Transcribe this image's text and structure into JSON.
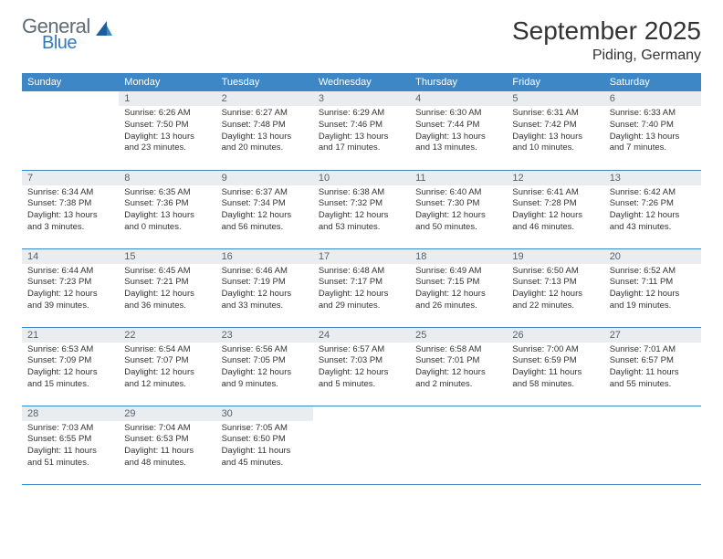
{
  "logo": {
    "general": "General",
    "blue": "Blue"
  },
  "title": "September 2025",
  "location": "Piding, Germany",
  "style": {
    "header_bg": "#3d87c7",
    "header_fg": "#ffffff",
    "daynum_bg": "#e9edf0",
    "daynum_fg": "#556270",
    "row_border": "#3d87c7",
    "body_font_size": 9.5,
    "header_font_size": 11,
    "title_font_size": 28,
    "location_font_size": 16
  },
  "days_of_week": [
    "Sunday",
    "Monday",
    "Tuesday",
    "Wednesday",
    "Thursday",
    "Friday",
    "Saturday"
  ],
  "weeks": [
    [
      null,
      {
        "n": "1",
        "sr": "Sunrise: 6:26 AM",
        "ss": "Sunset: 7:50 PM",
        "dl1": "Daylight: 13 hours",
        "dl2": "and 23 minutes."
      },
      {
        "n": "2",
        "sr": "Sunrise: 6:27 AM",
        "ss": "Sunset: 7:48 PM",
        "dl1": "Daylight: 13 hours",
        "dl2": "and 20 minutes."
      },
      {
        "n": "3",
        "sr": "Sunrise: 6:29 AM",
        "ss": "Sunset: 7:46 PM",
        "dl1": "Daylight: 13 hours",
        "dl2": "and 17 minutes."
      },
      {
        "n": "4",
        "sr": "Sunrise: 6:30 AM",
        "ss": "Sunset: 7:44 PM",
        "dl1": "Daylight: 13 hours",
        "dl2": "and 13 minutes."
      },
      {
        "n": "5",
        "sr": "Sunrise: 6:31 AM",
        "ss": "Sunset: 7:42 PM",
        "dl1": "Daylight: 13 hours",
        "dl2": "and 10 minutes."
      },
      {
        "n": "6",
        "sr": "Sunrise: 6:33 AM",
        "ss": "Sunset: 7:40 PM",
        "dl1": "Daylight: 13 hours",
        "dl2": "and 7 minutes."
      }
    ],
    [
      {
        "n": "7",
        "sr": "Sunrise: 6:34 AM",
        "ss": "Sunset: 7:38 PM",
        "dl1": "Daylight: 13 hours",
        "dl2": "and 3 minutes."
      },
      {
        "n": "8",
        "sr": "Sunrise: 6:35 AM",
        "ss": "Sunset: 7:36 PM",
        "dl1": "Daylight: 13 hours",
        "dl2": "and 0 minutes."
      },
      {
        "n": "9",
        "sr": "Sunrise: 6:37 AM",
        "ss": "Sunset: 7:34 PM",
        "dl1": "Daylight: 12 hours",
        "dl2": "and 56 minutes."
      },
      {
        "n": "10",
        "sr": "Sunrise: 6:38 AM",
        "ss": "Sunset: 7:32 PM",
        "dl1": "Daylight: 12 hours",
        "dl2": "and 53 minutes."
      },
      {
        "n": "11",
        "sr": "Sunrise: 6:40 AM",
        "ss": "Sunset: 7:30 PM",
        "dl1": "Daylight: 12 hours",
        "dl2": "and 50 minutes."
      },
      {
        "n": "12",
        "sr": "Sunrise: 6:41 AM",
        "ss": "Sunset: 7:28 PM",
        "dl1": "Daylight: 12 hours",
        "dl2": "and 46 minutes."
      },
      {
        "n": "13",
        "sr": "Sunrise: 6:42 AM",
        "ss": "Sunset: 7:26 PM",
        "dl1": "Daylight: 12 hours",
        "dl2": "and 43 minutes."
      }
    ],
    [
      {
        "n": "14",
        "sr": "Sunrise: 6:44 AM",
        "ss": "Sunset: 7:23 PM",
        "dl1": "Daylight: 12 hours",
        "dl2": "and 39 minutes."
      },
      {
        "n": "15",
        "sr": "Sunrise: 6:45 AM",
        "ss": "Sunset: 7:21 PM",
        "dl1": "Daylight: 12 hours",
        "dl2": "and 36 minutes."
      },
      {
        "n": "16",
        "sr": "Sunrise: 6:46 AM",
        "ss": "Sunset: 7:19 PM",
        "dl1": "Daylight: 12 hours",
        "dl2": "and 33 minutes."
      },
      {
        "n": "17",
        "sr": "Sunrise: 6:48 AM",
        "ss": "Sunset: 7:17 PM",
        "dl1": "Daylight: 12 hours",
        "dl2": "and 29 minutes."
      },
      {
        "n": "18",
        "sr": "Sunrise: 6:49 AM",
        "ss": "Sunset: 7:15 PM",
        "dl1": "Daylight: 12 hours",
        "dl2": "and 26 minutes."
      },
      {
        "n": "19",
        "sr": "Sunrise: 6:50 AM",
        "ss": "Sunset: 7:13 PM",
        "dl1": "Daylight: 12 hours",
        "dl2": "and 22 minutes."
      },
      {
        "n": "20",
        "sr": "Sunrise: 6:52 AM",
        "ss": "Sunset: 7:11 PM",
        "dl1": "Daylight: 12 hours",
        "dl2": "and 19 minutes."
      }
    ],
    [
      {
        "n": "21",
        "sr": "Sunrise: 6:53 AM",
        "ss": "Sunset: 7:09 PM",
        "dl1": "Daylight: 12 hours",
        "dl2": "and 15 minutes."
      },
      {
        "n": "22",
        "sr": "Sunrise: 6:54 AM",
        "ss": "Sunset: 7:07 PM",
        "dl1": "Daylight: 12 hours",
        "dl2": "and 12 minutes."
      },
      {
        "n": "23",
        "sr": "Sunrise: 6:56 AM",
        "ss": "Sunset: 7:05 PM",
        "dl1": "Daylight: 12 hours",
        "dl2": "and 9 minutes."
      },
      {
        "n": "24",
        "sr": "Sunrise: 6:57 AM",
        "ss": "Sunset: 7:03 PM",
        "dl1": "Daylight: 12 hours",
        "dl2": "and 5 minutes."
      },
      {
        "n": "25",
        "sr": "Sunrise: 6:58 AM",
        "ss": "Sunset: 7:01 PM",
        "dl1": "Daylight: 12 hours",
        "dl2": "and 2 minutes."
      },
      {
        "n": "26",
        "sr": "Sunrise: 7:00 AM",
        "ss": "Sunset: 6:59 PM",
        "dl1": "Daylight: 11 hours",
        "dl2": "and 58 minutes."
      },
      {
        "n": "27",
        "sr": "Sunrise: 7:01 AM",
        "ss": "Sunset: 6:57 PM",
        "dl1": "Daylight: 11 hours",
        "dl2": "and 55 minutes."
      }
    ],
    [
      {
        "n": "28",
        "sr": "Sunrise: 7:03 AM",
        "ss": "Sunset: 6:55 PM",
        "dl1": "Daylight: 11 hours",
        "dl2": "and 51 minutes."
      },
      {
        "n": "29",
        "sr": "Sunrise: 7:04 AM",
        "ss": "Sunset: 6:53 PM",
        "dl1": "Daylight: 11 hours",
        "dl2": "and 48 minutes."
      },
      {
        "n": "30",
        "sr": "Sunrise: 7:05 AM",
        "ss": "Sunset: 6:50 PM",
        "dl1": "Daylight: 11 hours",
        "dl2": "and 45 minutes."
      },
      null,
      null,
      null,
      null
    ]
  ]
}
